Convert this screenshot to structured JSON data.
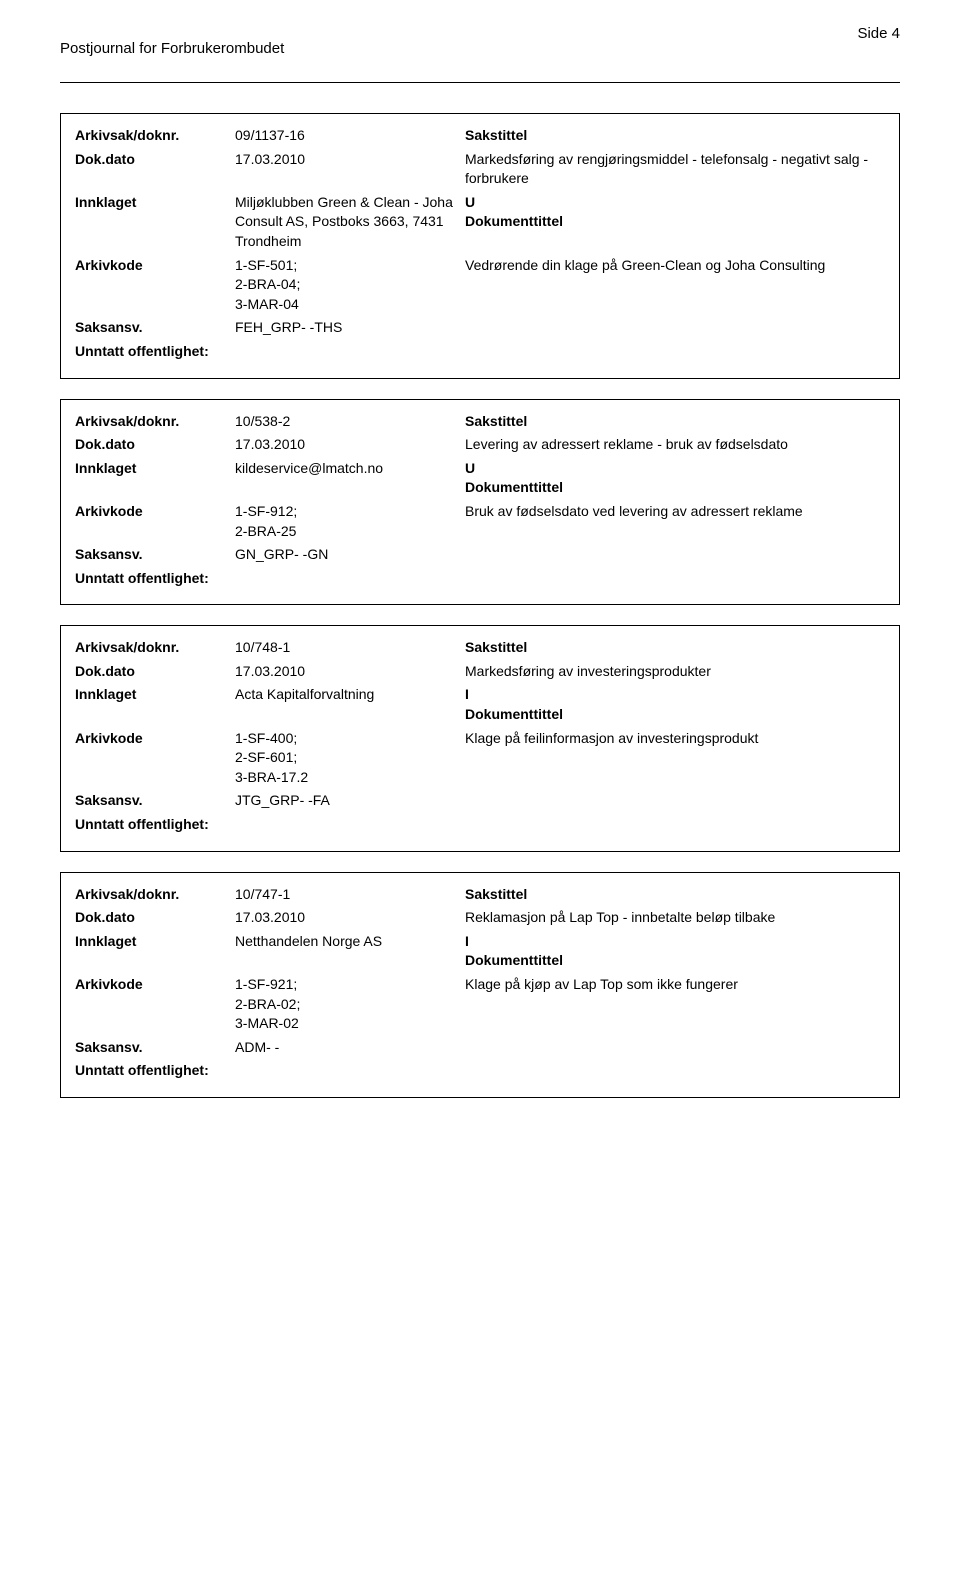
{
  "header": {
    "journal_title": "Postjournal for Forbrukerombudet",
    "page_indicator": "Side 4"
  },
  "records": [
    {
      "arkivsak_label": "Arkivsak/doknr.",
      "arkivsak_value": "09/1137-16",
      "sakstittel_label": "Sakstittel",
      "dokdato_label": "Dok.dato",
      "dokdato_value": "17.03.2010",
      "sakstittel_value": "Markedsføring av rengjøringsmiddel - telefonsalg - negativt salg  - forbrukere",
      "innklaget_label": "Innklaget",
      "innklaget_value": "Miljøklubben Green & Clean - Joha Consult AS, Postboks 3663, 7431 Trondheim",
      "type_code": "U",
      "dokumenttittel_label": "Dokumenttittel",
      "arkivkode_label": "Arkivkode",
      "arkivkode_value": "1-SF-501;\n2-BRA-04;\n3-MAR-04",
      "dokumenttittel_value": "Vedrørende din klage på Green-Clean og Joha Consulting",
      "saksansv_label": "Saksansv.",
      "saksansv_value": "FEH_GRP- -THS",
      "unntatt_label": "Unntatt offentlighet:"
    },
    {
      "arkivsak_label": "Arkivsak/doknr.",
      "arkivsak_value": "10/538-2",
      "sakstittel_label": "Sakstittel",
      "dokdato_label": "Dok.dato",
      "dokdato_value": "17.03.2010",
      "sakstittel_value": "Levering av adressert reklame - bruk av fødselsdato",
      "innklaget_label": "Innklaget",
      "innklaget_value": "kildeservice@lmatch.no",
      "type_code": "U",
      "dokumenttittel_label": "Dokumenttittel",
      "arkivkode_label": "Arkivkode",
      "arkivkode_value": "1-SF-912;\n2-BRA-25",
      "dokumenttittel_value": "Bruk av fødselsdato ved levering av adressert reklame",
      "saksansv_label": "Saksansv.",
      "saksansv_value": "GN_GRP- -GN",
      "unntatt_label": "Unntatt offentlighet:"
    },
    {
      "arkivsak_label": "Arkivsak/doknr.",
      "arkivsak_value": "10/748-1",
      "sakstittel_label": "Sakstittel",
      "dokdato_label": "Dok.dato",
      "dokdato_value": "17.03.2010",
      "sakstittel_value": "Markedsføring av investeringsprodukter",
      "innklaget_label": "Innklaget",
      "innklaget_value": "Acta Kapitalforvaltning",
      "type_code": "I",
      "dokumenttittel_label": "Dokumenttittel",
      "arkivkode_label": "Arkivkode",
      "arkivkode_value": "1-SF-400;\n2-SF-601;\n3-BRA-17.2",
      "dokumenttittel_value": "Klage på feilinformasjon av investeringsprodukt",
      "saksansv_label": "Saksansv.",
      "saksansv_value": "JTG_GRP- -FA",
      "unntatt_label": "Unntatt offentlighet:"
    },
    {
      "arkivsak_label": "Arkivsak/doknr.",
      "arkivsak_value": "10/747-1",
      "sakstittel_label": "Sakstittel",
      "dokdato_label": "Dok.dato",
      "dokdato_value": "17.03.2010",
      "sakstittel_value": "Reklamasjon på Lap Top - innbetalte beløp tilbake",
      "innklaget_label": "Innklaget",
      "innklaget_value": "Netthandelen Norge AS",
      "type_code": "I",
      "dokumenttittel_label": "Dokumenttittel",
      "arkivkode_label": "Arkivkode",
      "arkivkode_value": "1-SF-921;\n2-BRA-02;\n3-MAR-02",
      "dokumenttittel_value": "Klage på kjøp av Lap Top som ikke fungerer",
      "saksansv_label": "Saksansv.",
      "saksansv_value": "ADM- -",
      "unntatt_label": "Unntatt offentlighet:"
    }
  ]
}
